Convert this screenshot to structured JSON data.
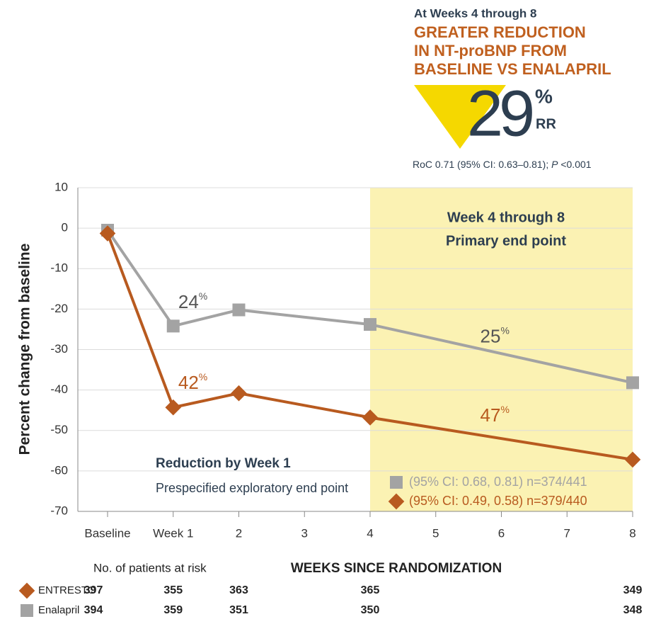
{
  "chart_data": {
    "type": "line",
    "header": {
      "kicker": "At Weeks 4 through 8",
      "headline": [
        "GREATER REDUCTION",
        "IN NT-proBNP FROM",
        "BASELINE VS ENALAPRIL"
      ],
      "big_number": "29",
      "big_unit": "%",
      "big_suffix": "RR",
      "stat_note": [
        "RoC 0.71 (95% CI: 0.63–0.81); ",
        "P",
        " <0.001"
      ]
    },
    "y_label": "Percent change from baseline",
    "x_label": "WEEKS SINCE RANDOMIZATION",
    "xlim": [
      0,
      8
    ],
    "xticks": [
      {
        "value": 0,
        "label": "Baseline"
      },
      {
        "value": 1,
        "label": "Week 1"
      },
      2,
      3,
      4,
      5,
      6,
      7,
      8
    ],
    "ylim": [
      -70,
      10
    ],
    "yticks": [
      10,
      0,
      -10,
      -20,
      -30,
      -40,
      -50,
      -60,
      -70
    ],
    "grid": true,
    "x": [
      0,
      1,
      2,
      4,
      8
    ],
    "series": [
      {
        "name": "ENTRESTO",
        "color": "#b85a1f",
        "marker": "diamond",
        "values": [
          -1.3,
          -44.3,
          -40.8,
          -46.8,
          -57.2
        ],
        "legend": "(95% CI: 0.49, 0.58) n=379/440",
        "at_risk": [
          397,
          355,
          363,
          365,
          349
        ]
      },
      {
        "name": "Enalapril",
        "color": "#a3a3a3",
        "marker": "square",
        "values": [
          -0.5,
          -24.2,
          -20.2,
          -23.8,
          -38.2
        ],
        "legend": "(95% CI: 0.68, 0.81) n=374/441",
        "at_risk": [
          394,
          359,
          351,
          350,
          348
        ]
      }
    ],
    "annotations": [
      {
        "text": "24",
        "sup": "%",
        "x": 1.3,
        "y": -18.5,
        "color": "#555555"
      },
      {
        "text": "42",
        "sup": "%",
        "x": 1.3,
        "y": -38.5,
        "color": "#b85a1f"
      },
      {
        "text": "25",
        "sup": "%",
        "x": 5.9,
        "y": -27,
        "color": "#555555"
      },
      {
        "text": "47",
        "sup": "%",
        "x": 5.9,
        "y": -46.5,
        "color": "#b85a1f"
      }
    ],
    "shaded_xrange": [
      4,
      8
    ],
    "shaded_color": "#fbf2b3",
    "shaded_label": [
      "Week 4 through 8",
      "Primary end point"
    ],
    "early_label": [
      "Reduction by Week 1",
      "Prespecified exploratory end point"
    ],
    "risk_title": "No. of patients at risk"
  }
}
